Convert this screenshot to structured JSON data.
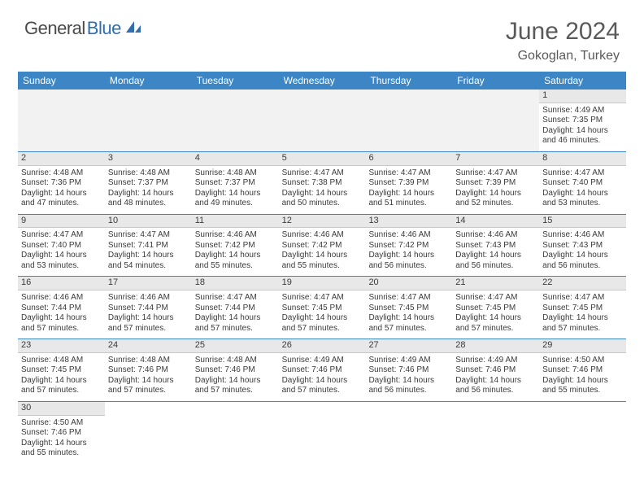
{
  "logo": {
    "part1": "General",
    "part2": "Blue"
  },
  "title": "June 2024",
  "location": "Gokoglan, Turkey",
  "colors": {
    "header_bg": "#3c86c6",
    "header_text": "#ffffff",
    "daybar_bg": "#e8e8e8",
    "row_border": "#3c86c6",
    "text": "#3a3a3a",
    "logo_general": "#4a4a4a",
    "logo_blue": "#2f6fb0"
  },
  "weekdays": [
    "Sunday",
    "Monday",
    "Tuesday",
    "Wednesday",
    "Thursday",
    "Friday",
    "Saturday"
  ],
  "weeks": [
    [
      null,
      null,
      null,
      null,
      null,
      null,
      {
        "n": "1",
        "sunrise": "Sunrise: 4:49 AM",
        "sunset": "Sunset: 7:35 PM",
        "d1": "Daylight: 14 hours",
        "d2": "and 46 minutes."
      }
    ],
    [
      {
        "n": "2",
        "sunrise": "Sunrise: 4:48 AM",
        "sunset": "Sunset: 7:36 PM",
        "d1": "Daylight: 14 hours",
        "d2": "and 47 minutes."
      },
      {
        "n": "3",
        "sunrise": "Sunrise: 4:48 AM",
        "sunset": "Sunset: 7:37 PM",
        "d1": "Daylight: 14 hours",
        "d2": "and 48 minutes."
      },
      {
        "n": "4",
        "sunrise": "Sunrise: 4:48 AM",
        "sunset": "Sunset: 7:37 PM",
        "d1": "Daylight: 14 hours",
        "d2": "and 49 minutes."
      },
      {
        "n": "5",
        "sunrise": "Sunrise: 4:47 AM",
        "sunset": "Sunset: 7:38 PM",
        "d1": "Daylight: 14 hours",
        "d2": "and 50 minutes."
      },
      {
        "n": "6",
        "sunrise": "Sunrise: 4:47 AM",
        "sunset": "Sunset: 7:39 PM",
        "d1": "Daylight: 14 hours",
        "d2": "and 51 minutes."
      },
      {
        "n": "7",
        "sunrise": "Sunrise: 4:47 AM",
        "sunset": "Sunset: 7:39 PM",
        "d1": "Daylight: 14 hours",
        "d2": "and 52 minutes."
      },
      {
        "n": "8",
        "sunrise": "Sunrise: 4:47 AM",
        "sunset": "Sunset: 7:40 PM",
        "d1": "Daylight: 14 hours",
        "d2": "and 53 minutes."
      }
    ],
    [
      {
        "n": "9",
        "sunrise": "Sunrise: 4:47 AM",
        "sunset": "Sunset: 7:40 PM",
        "d1": "Daylight: 14 hours",
        "d2": "and 53 minutes."
      },
      {
        "n": "10",
        "sunrise": "Sunrise: 4:47 AM",
        "sunset": "Sunset: 7:41 PM",
        "d1": "Daylight: 14 hours",
        "d2": "and 54 minutes."
      },
      {
        "n": "11",
        "sunrise": "Sunrise: 4:46 AM",
        "sunset": "Sunset: 7:42 PM",
        "d1": "Daylight: 14 hours",
        "d2": "and 55 minutes."
      },
      {
        "n": "12",
        "sunrise": "Sunrise: 4:46 AM",
        "sunset": "Sunset: 7:42 PM",
        "d1": "Daylight: 14 hours",
        "d2": "and 55 minutes."
      },
      {
        "n": "13",
        "sunrise": "Sunrise: 4:46 AM",
        "sunset": "Sunset: 7:42 PM",
        "d1": "Daylight: 14 hours",
        "d2": "and 56 minutes."
      },
      {
        "n": "14",
        "sunrise": "Sunrise: 4:46 AM",
        "sunset": "Sunset: 7:43 PM",
        "d1": "Daylight: 14 hours",
        "d2": "and 56 minutes."
      },
      {
        "n": "15",
        "sunrise": "Sunrise: 4:46 AM",
        "sunset": "Sunset: 7:43 PM",
        "d1": "Daylight: 14 hours",
        "d2": "and 56 minutes."
      }
    ],
    [
      {
        "n": "16",
        "sunrise": "Sunrise: 4:46 AM",
        "sunset": "Sunset: 7:44 PM",
        "d1": "Daylight: 14 hours",
        "d2": "and 57 minutes."
      },
      {
        "n": "17",
        "sunrise": "Sunrise: 4:46 AM",
        "sunset": "Sunset: 7:44 PM",
        "d1": "Daylight: 14 hours",
        "d2": "and 57 minutes."
      },
      {
        "n": "18",
        "sunrise": "Sunrise: 4:47 AM",
        "sunset": "Sunset: 7:44 PM",
        "d1": "Daylight: 14 hours",
        "d2": "and 57 minutes."
      },
      {
        "n": "19",
        "sunrise": "Sunrise: 4:47 AM",
        "sunset": "Sunset: 7:45 PM",
        "d1": "Daylight: 14 hours",
        "d2": "and 57 minutes."
      },
      {
        "n": "20",
        "sunrise": "Sunrise: 4:47 AM",
        "sunset": "Sunset: 7:45 PM",
        "d1": "Daylight: 14 hours",
        "d2": "and 57 minutes."
      },
      {
        "n": "21",
        "sunrise": "Sunrise: 4:47 AM",
        "sunset": "Sunset: 7:45 PM",
        "d1": "Daylight: 14 hours",
        "d2": "and 57 minutes."
      },
      {
        "n": "22",
        "sunrise": "Sunrise: 4:47 AM",
        "sunset": "Sunset: 7:45 PM",
        "d1": "Daylight: 14 hours",
        "d2": "and 57 minutes."
      }
    ],
    [
      {
        "n": "23",
        "sunrise": "Sunrise: 4:48 AM",
        "sunset": "Sunset: 7:45 PM",
        "d1": "Daylight: 14 hours",
        "d2": "and 57 minutes."
      },
      {
        "n": "24",
        "sunrise": "Sunrise: 4:48 AM",
        "sunset": "Sunset: 7:46 PM",
        "d1": "Daylight: 14 hours",
        "d2": "and 57 minutes."
      },
      {
        "n": "25",
        "sunrise": "Sunrise: 4:48 AM",
        "sunset": "Sunset: 7:46 PM",
        "d1": "Daylight: 14 hours",
        "d2": "and 57 minutes."
      },
      {
        "n": "26",
        "sunrise": "Sunrise: 4:49 AM",
        "sunset": "Sunset: 7:46 PM",
        "d1": "Daylight: 14 hours",
        "d2": "and 57 minutes."
      },
      {
        "n": "27",
        "sunrise": "Sunrise: 4:49 AM",
        "sunset": "Sunset: 7:46 PM",
        "d1": "Daylight: 14 hours",
        "d2": "and 56 minutes."
      },
      {
        "n": "28",
        "sunrise": "Sunrise: 4:49 AM",
        "sunset": "Sunset: 7:46 PM",
        "d1": "Daylight: 14 hours",
        "d2": "and 56 minutes."
      },
      {
        "n": "29",
        "sunrise": "Sunrise: 4:50 AM",
        "sunset": "Sunset: 7:46 PM",
        "d1": "Daylight: 14 hours",
        "d2": "and 55 minutes."
      }
    ],
    [
      {
        "n": "30",
        "sunrise": "Sunrise: 4:50 AM",
        "sunset": "Sunset: 7:46 PM",
        "d1": "Daylight: 14 hours",
        "d2": "and 55 minutes."
      },
      null,
      null,
      null,
      null,
      null,
      null
    ]
  ]
}
